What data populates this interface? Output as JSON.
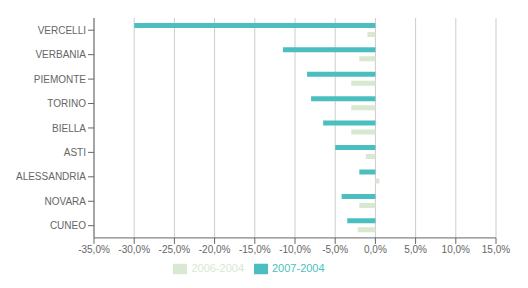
{
  "chart_data": {
    "type": "bar",
    "orientation": "horizontal",
    "categories": [
      "CUNEO",
      "NOVARA",
      "ALESSANDRIA",
      "ASTI",
      "BIELLA",
      "TORINO",
      "PIEMONTE",
      "VERBANIA",
      "VERCELLI"
    ],
    "series": [
      {
        "name": "2007-2004",
        "color": "#4bbfbf",
        "values": [
          -3.5,
          -4.2,
          -2.0,
          -5.0,
          -6.5,
          -8.0,
          -8.5,
          -11.5,
          -30.0
        ]
      },
      {
        "name": "2006-2004",
        "color": "#d9e8d0",
        "values": [
          -2.2,
          -2.0,
          0.5,
          -1.2,
          -3.0,
          -3.0,
          -3.0,
          -2.0,
          -1.0
        ]
      }
    ],
    "xlim": [
      -35,
      15
    ],
    "xticks": [
      {
        "value": -35,
        "label": "-35,0%"
      },
      {
        "value": -30,
        "label": "-30,0%"
      },
      {
        "value": -25,
        "label": "-25,0%"
      },
      {
        "value": -20,
        "label": "-20,0%"
      },
      {
        "value": -15,
        "label": "-15,0%"
      },
      {
        "value": -10,
        "label": "-10,0%"
      },
      {
        "value": -5,
        "label": "-5,0%"
      },
      {
        "value": 0,
        "label": "0,0%"
      },
      {
        "value": 5,
        "label": "5,0%"
      },
      {
        "value": 10,
        "label": "10,0%"
      },
      {
        "value": 15,
        "label": "15,0%"
      }
    ],
    "grid": true,
    "legend": "bottom"
  }
}
